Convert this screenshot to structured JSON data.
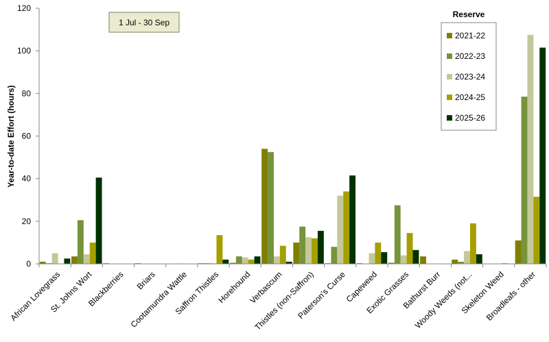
{
  "chart_data": {
    "type": "bar",
    "title": "",
    "annotation": "1 Jul  -  30 Sep",
    "xlabel": "",
    "ylabel": "Year-to-date Effort  (hours)",
    "ylim": [
      0,
      120
    ],
    "yticks": [
      0,
      20,
      40,
      60,
      80,
      100,
      120
    ],
    "grid": false,
    "legend_title": "Reserve",
    "legend_position": "top-right",
    "categories": [
      "African Lovegrass",
      "St. Johns Wort",
      "Blackberries",
      "Briars",
      "Cootamundra Wattle",
      "Saffron Thistles",
      "Horehound",
      "Verbascum",
      "Thistles (non-Saffron)",
      "Paterson's Curse",
      "Capeweed",
      "Exotic Grasses",
      "Bathurst Burr",
      "Woody Weeds (not...",
      "Skeleton Weed",
      "Broadleafs - other"
    ],
    "series": [
      {
        "name": "2021-22",
        "color": "#7f7f00",
        "values": [
          1.0,
          3.5,
          0.3,
          0.3,
          0,
          0.3,
          0.5,
          54,
          10,
          0.3,
          0.3,
          0.5,
          3.5,
          2.0,
          0,
          11
        ]
      },
      {
        "name": "2022-23",
        "color": "#77933c",
        "values": [
          0.3,
          20.5,
          0,
          0,
          0,
          0.3,
          3.5,
          52.5,
          17.5,
          8.0,
          0,
          27.5,
          0,
          1.0,
          0,
          78.5
        ]
      },
      {
        "name": "2023-24",
        "color": "#c4c89a",
        "values": [
          5.0,
          4.5,
          0,
          0,
          0.2,
          0.3,
          3.0,
          3.5,
          12.5,
          32.0,
          5.0,
          4.0,
          0,
          6.0,
          0,
          107.5
        ]
      },
      {
        "name": "2024-25",
        "color": "#a5a000",
        "values": [
          0,
          10.0,
          0,
          0,
          0,
          13.5,
          2.0,
          8.5,
          12.0,
          34.0,
          10.0,
          14.5,
          0,
          19.0,
          0.3,
          31.5
        ]
      },
      {
        "name": "2025-26",
        "color": "#003300",
        "values": [
          2.5,
          40.5,
          0,
          0,
          0,
          2.0,
          3.5,
          1.0,
          15.5,
          41.5,
          5.5,
          6.5,
          0,
          4.5,
          0,
          101.5
        ]
      }
    ]
  }
}
